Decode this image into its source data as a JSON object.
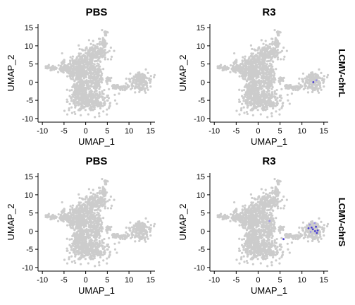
{
  "chart_data": {
    "type": "scatter",
    "columns": [
      "PBS",
      "R3"
    ],
    "rows": [
      "LCMV-chrL",
      "LCMV-chrS"
    ],
    "xlabel": "UMAP_1",
    "ylabel": "UMAP_2",
    "xlim": [
      -11,
      16
    ],
    "ylim": [
      -11,
      16
    ],
    "xticks": [
      -10,
      -5,
      0,
      5,
      10,
      15
    ],
    "yticks": [
      -10,
      -5,
      0,
      5,
      10,
      15
    ],
    "colors": {
      "background_points": "#cccccc",
      "expression": "#4b3fd1",
      "expression_light": "#9b93e6"
    },
    "panels": [
      {
        "column": "PBS",
        "row": "LCMV-chrL",
        "expression_points": []
      },
      {
        "column": "R3",
        "row": "LCMV-chrL",
        "expression_points": [
          [
            13.3,
            0.5
          ],
          [
            12.6,
            0.0
          ]
        ]
      },
      {
        "column": "PBS",
        "row": "LCMV-chrS",
        "expression_points": []
      },
      {
        "column": "R3",
        "row": "LCMV-chrS",
        "expression_points": [
          [
            11.8,
            1.8
          ],
          [
            12.5,
            0.5
          ],
          [
            13.2,
            1.2
          ],
          [
            12.0,
            -0.2
          ],
          [
            13.6,
            0.2
          ],
          [
            11.5,
            0.8
          ],
          [
            12.9,
            2.2
          ],
          [
            13.4,
            -0.5
          ],
          [
            12.2,
            1.0
          ],
          [
            2.6,
            2.8
          ],
          [
            5.8,
            -2.2
          ],
          [
            13.0,
            0.0
          ]
        ]
      }
    ]
  }
}
